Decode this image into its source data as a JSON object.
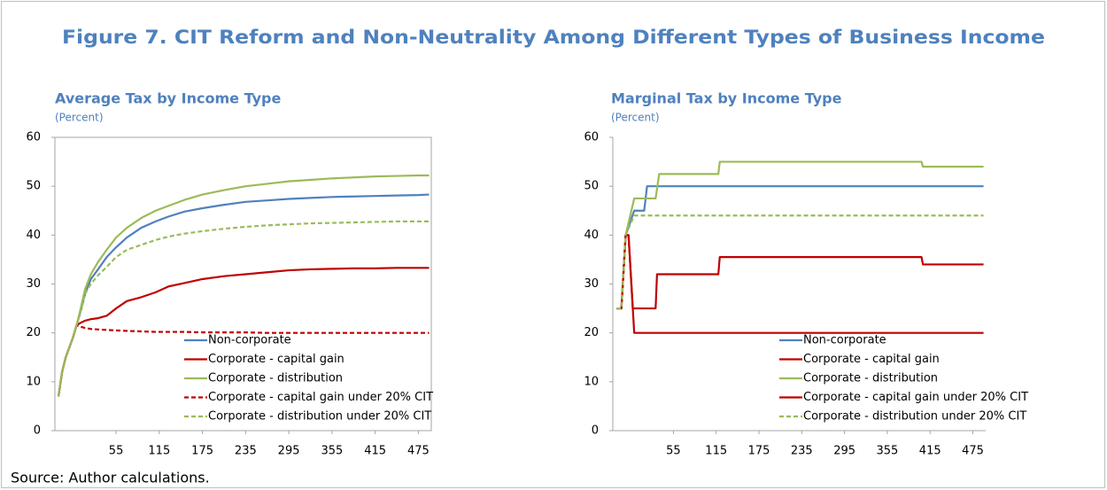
{
  "title": "Figure 7. CIT Reform and Non-Neutrality Among Different Types of Business Income",
  "source": "Source: Author calculations.",
  "chart_data": [
    {
      "type": "line",
      "title": "Average Tax by Income Type",
      "subtitle": "(Percent)",
      "frame": true,
      "legend": "lower center",
      "xlim": [
        -30,
        493
      ],
      "xticks": [
        55,
        115,
        175,
        235,
        295,
        355,
        415,
        475
      ],
      "ylim": [
        0,
        60
      ],
      "yticks": [
        0,
        10,
        20,
        30,
        40,
        50,
        60
      ],
      "x": [
        -25,
        -20,
        -15,
        -10,
        -5,
        0,
        5,
        12,
        20,
        30,
        42,
        55,
        70,
        90,
        110,
        128,
        150,
        175,
        205,
        235,
        265,
        295,
        325,
        355,
        385,
        415,
        445,
        475,
        490
      ],
      "series": [
        {
          "name": "Non-corporate",
          "color": "#4f81bd",
          "linestyle": "solid",
          "values": [
            7,
            12,
            15,
            17,
            19,
            21.5,
            24,
            28,
            31,
            33,
            35.5,
            37.5,
            39.5,
            41.5,
            42.8,
            43.8,
            44.8,
            45.5,
            46.2,
            46.8,
            47.1,
            47.4,
            47.6,
            47.8,
            47.9,
            48,
            48.1,
            48.2,
            48.3
          ]
        },
        {
          "name": "Corporate - capital gain",
          "color": "#c00000",
          "linestyle": "solid",
          "values": [
            7,
            12,
            15,
            17,
            19,
            21.5,
            22,
            22.5,
            22.8,
            23,
            23.5,
            25,
            26.5,
            27.3,
            28.3,
            29.5,
            30.2,
            31,
            31.6,
            32,
            32.4,
            32.8,
            33,
            33.1,
            33.2,
            33.2,
            33.3,
            33.3,
            33.3
          ]
        },
        {
          "name": "Corporate - distribution",
          "color": "#9bbb59",
          "linestyle": "solid",
          "values": [
            7,
            12,
            15,
            17,
            19,
            21.5,
            24.5,
            29,
            32,
            34.5,
            37,
            39.5,
            41.5,
            43.5,
            45,
            46,
            47.2,
            48.3,
            49.2,
            50,
            50.5,
            51,
            51.3,
            51.6,
            51.8,
            52,
            52.1,
            52.2,
            52.2
          ]
        },
        {
          "name": "Corporate - capital gain under 20% CIT",
          "color": "#c00000",
          "linestyle": "dashed",
          "values": [
            7,
            12,
            15,
            17,
            19,
            21.5,
            21.3,
            21,
            20.8,
            20.7,
            20.6,
            20.5,
            20.4,
            20.3,
            20.2,
            20.2,
            20.2,
            20.1,
            20.1,
            20.1,
            20,
            20,
            20,
            20,
            20,
            20,
            20,
            20,
            20
          ]
        },
        {
          "name": "Corporate - distribution under 20% CIT",
          "color": "#9bbb59",
          "linestyle": "dashed",
          "values": [
            7,
            12,
            15,
            17,
            19,
            21.5,
            24,
            28,
            30,
            31.8,
            33.5,
            35.5,
            37,
            38,
            39,
            39.7,
            40.3,
            40.8,
            41.3,
            41.7,
            42,
            42.2,
            42.4,
            42.5,
            42.6,
            42.7,
            42.8,
            42.8,
            42.8
          ]
        }
      ]
    },
    {
      "type": "line",
      "title": "Marginal Tax by Income Type",
      "subtitle": "(Percent)",
      "frame": false,
      "legend": "lower center",
      "xlim": [
        -30,
        493
      ],
      "xticks": [
        55,
        115,
        175,
        235,
        295,
        355,
        415,
        475
      ],
      "ylim": [
        0,
        60
      ],
      "yticks": [
        0,
        10,
        20,
        30,
        40,
        50,
        60
      ],
      "series": [
        {
          "name": "Non-corporate",
          "color": "#4f81bd",
          "linestyle": "solid",
          "x": [
            -25,
            -18,
            -12,
            0,
            14,
            18,
            490
          ],
          "values": [
            25,
            25,
            40,
            45,
            45,
            50,
            50
          ]
        },
        {
          "name": "Corporate - capital gain",
          "color": "#c00000",
          "linestyle": "solid",
          "x": [
            -25,
            -18,
            -12,
            -8,
            -2,
            30,
            32,
            118,
            120,
            403,
            405,
            490
          ],
          "values": [
            25,
            25,
            40,
            40,
            25,
            25,
            32,
            32,
            35.5,
            35.5,
            34,
            34
          ]
        },
        {
          "name": "Corporate - distribution",
          "color": "#9bbb59",
          "linestyle": "solid",
          "x": [
            -25,
            -18,
            -12,
            0,
            30,
            35,
            118,
            120,
            403,
            405,
            490
          ],
          "values": [
            25,
            25,
            40,
            47.5,
            47.5,
            52.5,
            52.5,
            55,
            55,
            54,
            54
          ]
        },
        {
          "name": "Corporate - capital gain under 20% CIT",
          "color": "#c00000",
          "linestyle": "solid",
          "x": [
            -25,
            -18,
            -12,
            -8,
            0,
            490
          ],
          "values": [
            25,
            25,
            40,
            40,
            20,
            20
          ]
        },
        {
          "name": "Corporate - distribution under 20% CIT",
          "color": "#9bbb59",
          "linestyle": "dashed",
          "x": [
            -25,
            -18,
            -12,
            0,
            490
          ],
          "values": [
            25,
            25,
            40,
            44,
            44
          ]
        }
      ]
    }
  ]
}
